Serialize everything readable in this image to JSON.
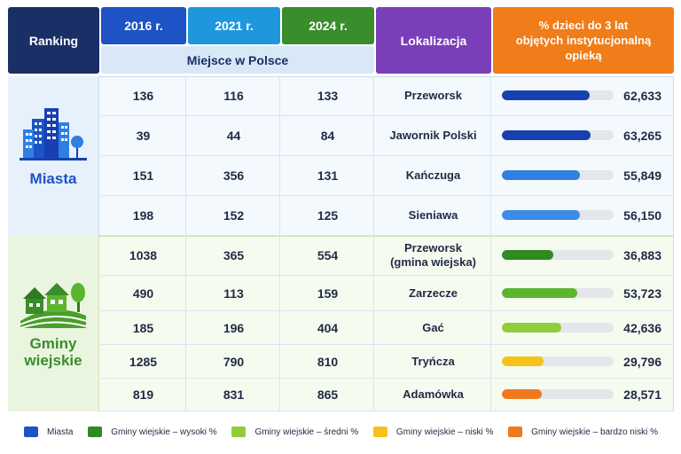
{
  "header": {
    "ranking": "Ranking",
    "year_2016": "2016 r.",
    "year_2021": "2021 r.",
    "year_2024": "2024 r.",
    "subheader": "Miejsce w Polsce",
    "location": "Lokalizacja",
    "percent_line1": "% dzieci do 3 lat",
    "percent_line2": "objętych instytucjonalną",
    "percent_line3": "opieką"
  },
  "groups": {
    "miasta": {
      "label": "Miasta",
      "icon": "city-buildings-icon"
    },
    "gminy": {
      "label_line1": "Gminy",
      "label_line2": "wiejskie",
      "icon": "village-houses-icon"
    }
  },
  "rows": [
    {
      "r2016": "136",
      "r2021": "116",
      "r2024": "133",
      "loc": "Przeworsk",
      "loc2": "",
      "pct": "62,633",
      "pct_value": 62.633,
      "color": "#1740b0"
    },
    {
      "r2016": "39",
      "r2021": "44",
      "r2024": "84",
      "loc": "Jawornik Polski",
      "loc2": "",
      "pct": "63,265",
      "pct_value": 63.265,
      "color": "#1740b0"
    },
    {
      "r2016": "151",
      "r2021": "356",
      "r2024": "131",
      "loc": "Kańczuga",
      "loc2": "",
      "pct": "55,849",
      "pct_value": 55.849,
      "color": "#2f7fe0"
    },
    {
      "r2016": "198",
      "r2021": "152",
      "r2024": "125",
      "loc": "Sieniawa",
      "loc2": "",
      "pct": "56,150",
      "pct_value": 56.15,
      "color": "#3d8be6"
    },
    {
      "r2016": "1038",
      "r2021": "365",
      "r2024": "554",
      "loc": "Przeworsk",
      "loc2": "(gmina wiejska)",
      "pct": "36,883",
      "pct_value": 36.883,
      "color": "#2e8a21"
    },
    {
      "r2016": "490",
      "r2021": "113",
      "r2024": "159",
      "loc": "Zarzecze",
      "loc2": "",
      "pct": "53,723",
      "pct_value": 53.723,
      "color": "#5bb52e"
    },
    {
      "r2016": "185",
      "r2021": "196",
      "r2024": "404",
      "loc": "Gać",
      "loc2": "",
      "pct": "42,636",
      "pct_value": 42.636,
      "color": "#8fce3a"
    },
    {
      "r2016": "1285",
      "r2021": "790",
      "r2024": "810",
      "loc": "Tryńcza",
      "loc2": "",
      "pct": "29,796",
      "pct_value": 29.796,
      "color": "#f5c21b"
    },
    {
      "r2016": "819",
      "r2021": "831",
      "r2024": "865",
      "loc": "Adamówka",
      "loc2": "",
      "pct": "28,571",
      "pct_value": 28.571,
      "color": "#ef7a1e"
    }
  ],
  "bar_scale_max": 80,
  "legend": [
    {
      "label": "Miasta",
      "color": "#1d53c4"
    },
    {
      "label": "Gminy wiejskie – wysoki %",
      "color": "#2e8a21"
    },
    {
      "label": "Gminy wiejskie – średni %",
      "color": "#8fce3a"
    },
    {
      "label": "Gminy wiejskie – niski %",
      "color": "#f5c21b"
    },
    {
      "label": "Gminy wiejskie – bardzo niski %",
      "color": "#ef7a1e"
    }
  ]
}
